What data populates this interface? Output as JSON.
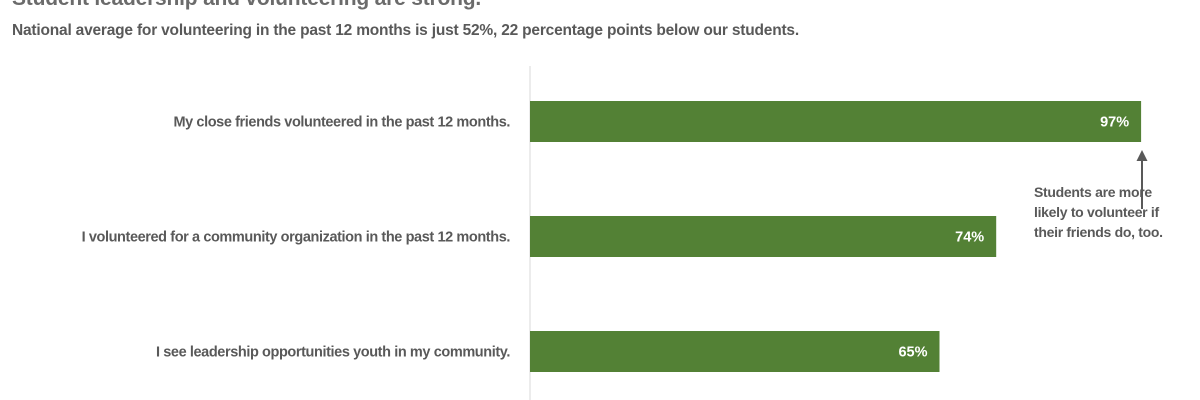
{
  "title": "Student leadership and volunteering are strong.",
  "subtitle": "National average for volunteering in the past 12 months is just 52%, 22 percentage points below our students.",
  "annotation": "Students are more likely to volunteer if their friends do, too.",
  "colors": {
    "bar": "#538135",
    "axis": "#d9d9d9",
    "text": "#595959",
    "arrow": "#595959"
  },
  "chart_data": {
    "type": "bar",
    "orientation": "horizontal",
    "categories": [
      "My close friends volunteered in the past 12 months.",
      "I volunteered for a community organization in the past 12 months.",
      "I see leadership opportunities youth in my community."
    ],
    "values": [
      97,
      74,
      65
    ],
    "value_labels": [
      "97%",
      "74%",
      "65%"
    ],
    "xlim": [
      0,
      100
    ],
    "grid": false,
    "legend": "none"
  }
}
